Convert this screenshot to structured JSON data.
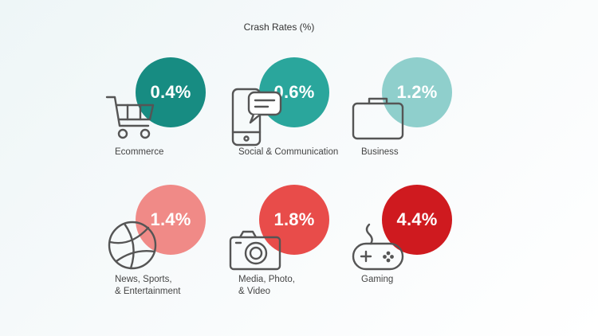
{
  "chart_data": {
    "type": "table",
    "title": "Crash Rates (%)",
    "unit": "%",
    "categories": [
      "Ecommerce",
      "Social & Communication",
      "Business",
      "News, Sports,\n& Entertainment",
      "Media, Photo,\n& Video",
      "Gaming"
    ],
    "values": [
      0.4,
      0.6,
      1.2,
      1.4,
      1.8,
      4.4
    ],
    "value_labels": [
      "0.4%",
      "0.6%",
      "1.2%",
      "1.4%",
      "1.8%",
      "4.4%"
    ],
    "items": [
      {
        "category": "Ecommerce",
        "value": 0.4,
        "label": "0.4%",
        "icon": "shopping-cart-icon",
        "color": "#178c82"
      },
      {
        "category": "Social & Communication",
        "value": 0.6,
        "label": "0.6%",
        "icon": "phone-chat-icon",
        "color": "#2aa69c"
      },
      {
        "category": "Business",
        "value": 1.2,
        "label": "1.2%",
        "icon": "briefcase-icon",
        "color": "#8fcfcc"
      },
      {
        "category": "News, Sports,\n& Entertainment",
        "value": 1.4,
        "label": "1.4%",
        "icon": "basketball-icon",
        "color": "#f08a87"
      },
      {
        "category": "Media, Photo,\n& Video",
        "value": 1.8,
        "label": "1.8%",
        "icon": "camera-icon",
        "color": "#e84c4a"
      },
      {
        "category": "Gaming",
        "value": 4.4,
        "label": "4.4%",
        "icon": "gamepad-icon",
        "color": "#cf1a1f"
      }
    ]
  }
}
